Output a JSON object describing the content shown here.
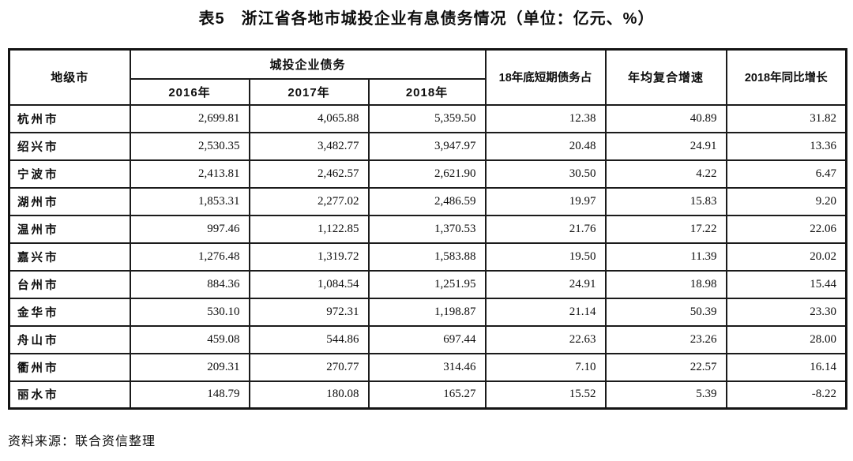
{
  "page": {
    "title": "表5　浙江省各地市城投企业有息债务情况（单位：亿元、%）",
    "source_note": "资料来源：联合资信整理"
  },
  "table": {
    "header": {
      "city": "地级市",
      "debt_group": "城投企业债务",
      "years": [
        "2016年",
        "2017年",
        "2018年"
      ],
      "short_term": "18年底短期债务占",
      "cagr": "年均复合增速",
      "yoy": "2018年同比增长"
    },
    "rows": [
      [
        "杭州市",
        "2,699.81",
        "4,065.88",
        "5,359.50",
        "12.38",
        "40.89",
        "31.82"
      ],
      [
        "绍兴市",
        "2,530.35",
        "3,482.77",
        "3,947.97",
        "20.48",
        "24.91",
        "13.36"
      ],
      [
        "宁波市",
        "2,413.81",
        "2,462.57",
        "2,621.90",
        "30.50",
        "4.22",
        "6.47"
      ],
      [
        "湖州市",
        "1,853.31",
        "2,277.02",
        "2,486.59",
        "19.97",
        "15.83",
        "9.20"
      ],
      [
        "温州市",
        "997.46",
        "1,122.85",
        "1,370.53",
        "21.76",
        "17.22",
        "22.06"
      ],
      [
        "嘉兴市",
        "1,276.48",
        "1,319.72",
        "1,583.88",
        "19.50",
        "11.39",
        "20.02"
      ],
      [
        "台州市",
        "884.36",
        "1,084.54",
        "1,251.95",
        "24.91",
        "18.98",
        "15.44"
      ],
      [
        "金华市",
        "530.10",
        "972.31",
        "1,198.87",
        "21.14",
        "50.39",
        "23.30"
      ],
      [
        "舟山市",
        "459.08",
        "544.86",
        "697.44",
        "22.63",
        "23.26",
        "28.00"
      ],
      [
        "衢州市",
        "209.31",
        "270.77",
        "314.46",
        "7.10",
        "22.57",
        "16.14"
      ],
      [
        "丽水市",
        "148.79",
        "180.08",
        "165.27",
        "15.52",
        "5.39",
        "-8.22"
      ]
    ]
  },
  "chart_data": {
    "type": "table",
    "title": "表5 浙江省各地市城投企业有息债务情况（单位：亿元、%）",
    "columns": [
      "地级市",
      "2016年",
      "2017年",
      "2018年",
      "18年底短期债务占",
      "年均复合增速",
      "2018年同比增长"
    ],
    "rows": [
      [
        "杭州市",
        2699.81,
        4065.88,
        5359.5,
        12.38,
        40.89,
        31.82
      ],
      [
        "绍兴市",
        2530.35,
        3482.77,
        3947.97,
        20.48,
        24.91,
        13.36
      ],
      [
        "宁波市",
        2413.81,
        2462.57,
        2621.9,
        30.5,
        4.22,
        6.47
      ],
      [
        "湖州市",
        1853.31,
        2277.02,
        2486.59,
        19.97,
        15.83,
        9.2
      ],
      [
        "温州市",
        997.46,
        1122.85,
        1370.53,
        21.76,
        17.22,
        22.06
      ],
      [
        "嘉兴市",
        1276.48,
        1319.72,
        1583.88,
        19.5,
        11.39,
        20.02
      ],
      [
        "台州市",
        884.36,
        1084.54,
        1251.95,
        24.91,
        18.98,
        15.44
      ],
      [
        "金华市",
        530.1,
        972.31,
        1198.87,
        21.14,
        50.39,
        23.3
      ],
      [
        "舟山市",
        459.08,
        544.86,
        697.44,
        22.63,
        23.26,
        28.0
      ],
      [
        "衢州市",
        209.31,
        270.77,
        314.46,
        7.1,
        22.57,
        16.14
      ],
      [
        "丽水市",
        148.79,
        180.08,
        165.27,
        15.52,
        5.39,
        -8.22
      ]
    ]
  }
}
